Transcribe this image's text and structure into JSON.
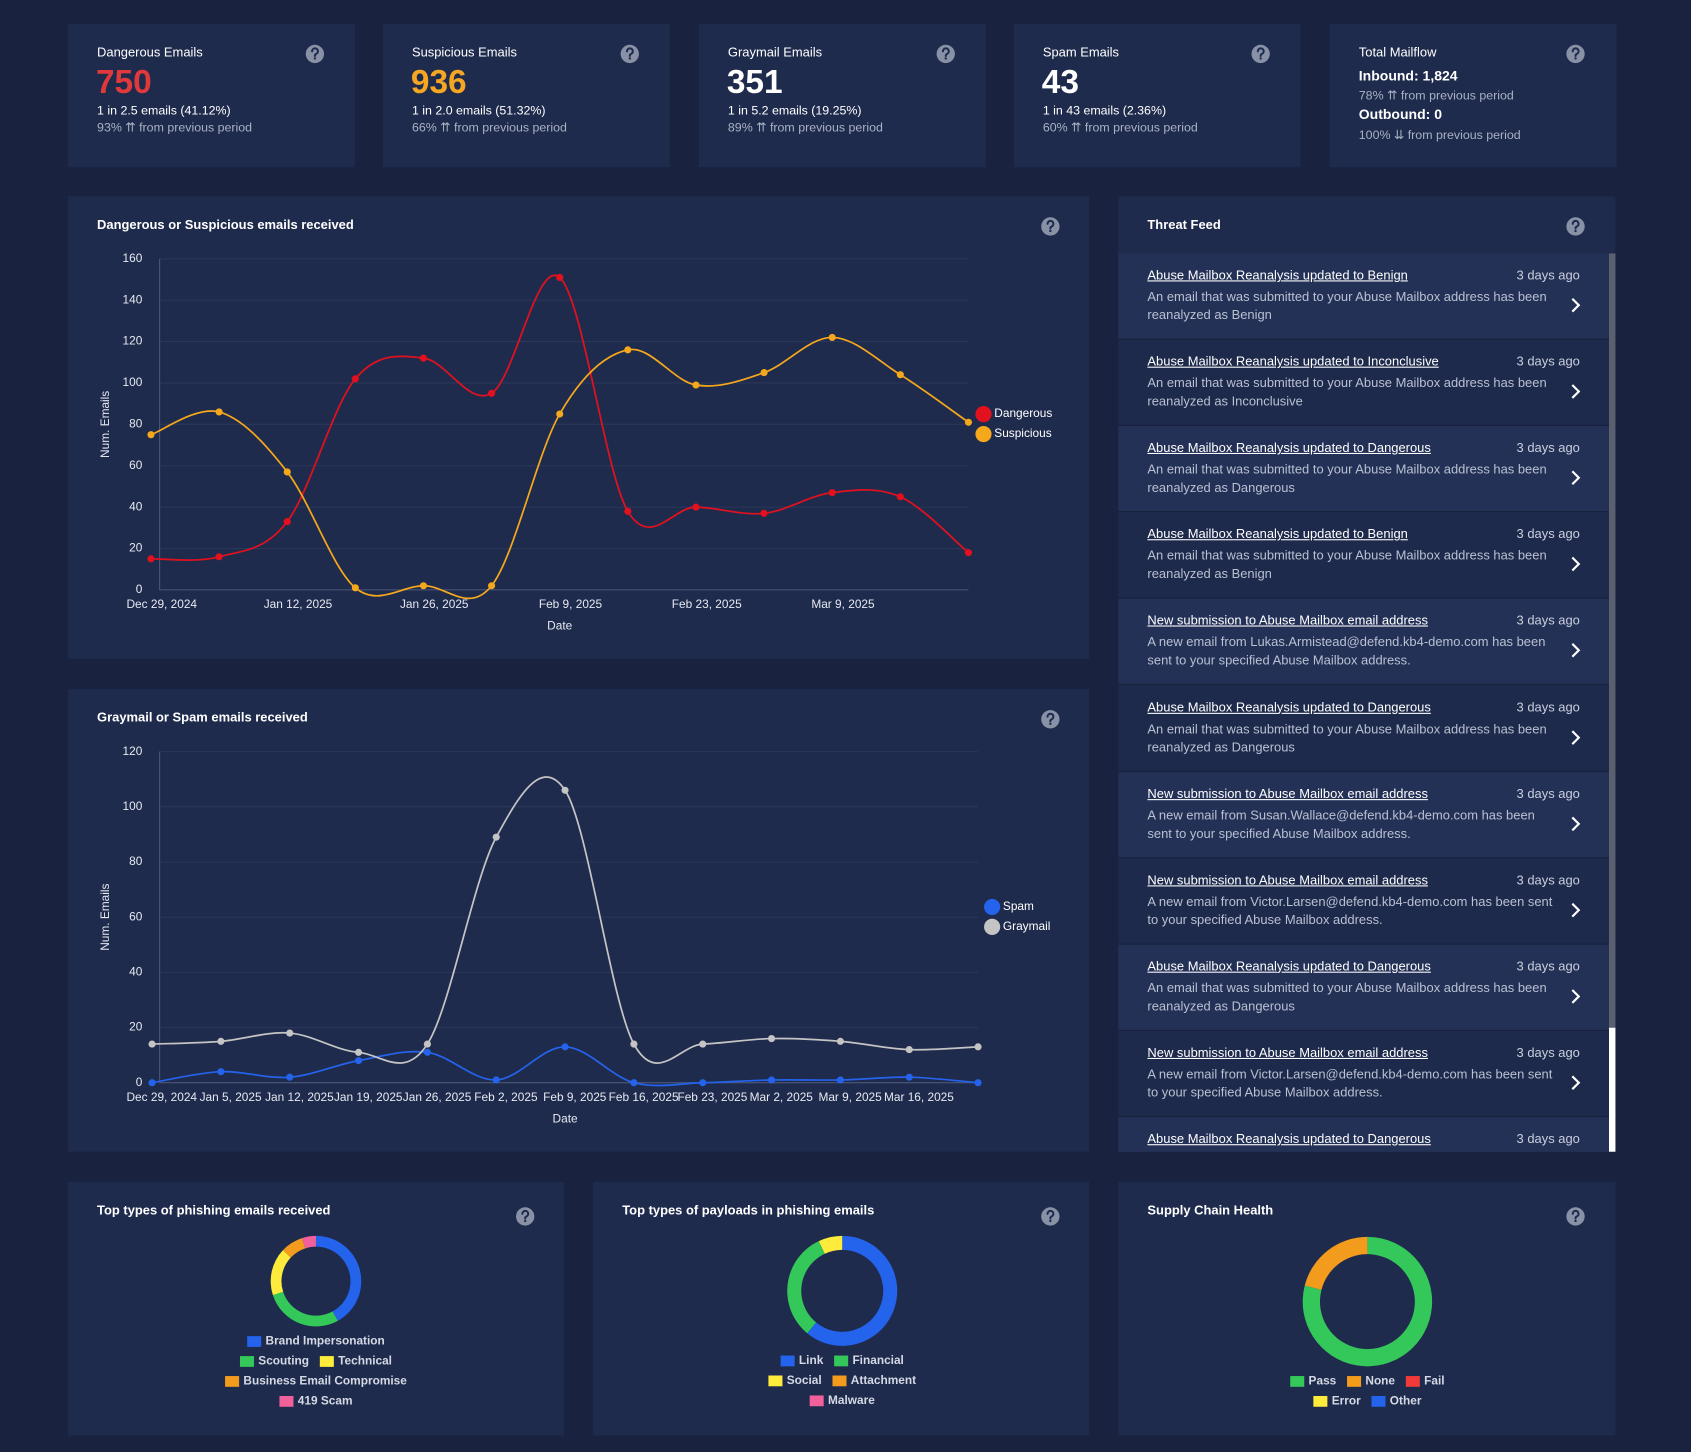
{
  "stats": [
    {
      "title": "Dangerous Emails",
      "value": 750,
      "color": "#e0393c",
      "ratio": "1 in 2.5 emails (41.12%)",
      "change": "93% ⇈ from previous period"
    },
    {
      "title": "Suspicious Emails",
      "value": 936,
      "color": "#f5a623",
      "ratio": "1 in 2.0 emails (51.32%)",
      "change": "66% ⇈ from previous period"
    },
    {
      "title": "Graymail Emails",
      "value": 351,
      "color": "#ffffff",
      "ratio": "1 in 5.2 emails (19.25%)",
      "change": "89% ⇈ from previous period"
    },
    {
      "title": "Spam Emails",
      "value": 43,
      "color": "#ffffff",
      "ratio": "1 in 43 emails (2.36%)",
      "change": "60% ⇈ from previous period"
    }
  ],
  "mailflow": {
    "title": "Total Mailflow",
    "inbound": "Inbound: 1,824",
    "inbound_change": "78% ⇈ from previous period",
    "outbound": "Outbound: 0",
    "outbound_change": "100% ⇊ from previous period"
  },
  "chart_data": [
    {
      "type": "line",
      "title": "Dangerous or Suspicious emails received",
      "x_label": "Date",
      "y_label": "Num. Emails",
      "categories": [
        "Dec 29, 2024",
        null,
        "Jan 12, 2025",
        null,
        "Jan 26, 2025",
        null,
        "Feb 9, 2025",
        null,
        "Feb 23, 2025",
        null,
        "Mar 9, 2025",
        null,
        null
      ],
      "series": [
        {
          "name": "Dangerous",
          "color": "#e3101e",
          "values": [
            15,
            16,
            33,
            102,
            112,
            95,
            151,
            38,
            40,
            37,
            47,
            45,
            18
          ]
        },
        {
          "name": "Suspicious",
          "color": "#f5a81c",
          "values": [
            75,
            86,
            57,
            1,
            2,
            2,
            85,
            116,
            99,
            105,
            122,
            104,
            81
          ]
        }
      ],
      "ylim": [
        0,
        160
      ],
      "yticks": [
        0,
        20,
        40,
        60,
        80,
        100,
        120,
        140,
        160
      ],
      "grid": true,
      "legend": "right"
    },
    {
      "type": "line",
      "title": "Graymail or Spam emails received",
      "x_label": "Date",
      "y_label": "Num. Emails",
      "categories": [
        "Dec 29, 2024",
        "Jan 5, 2025",
        "Jan 12, 2025",
        "Jan 19, 2025",
        "Jan 26, 2025",
        "Feb 2, 2025",
        "Feb 9, 2025",
        "Feb 16, 2025",
        "Feb 23, 2025",
        "Mar 2, 2025",
        "Mar 9, 2025",
        "Mar 16, 2025",
        null
      ],
      "series": [
        {
          "name": "Spam",
          "color": "#2463eb",
          "values": [
            0,
            4,
            2,
            8,
            11,
            1,
            13,
            0,
            0,
            1,
            1,
            2,
            0
          ]
        },
        {
          "name": "Graymail",
          "color": "#c4c4c4",
          "values": [
            14,
            15,
            18,
            11,
            14,
            89,
            106,
            14,
            14,
            16,
            15,
            12,
            13
          ]
        }
      ],
      "ylim": [
        0,
        120
      ],
      "yticks": [
        0,
        20,
        40,
        60,
        80,
        100,
        120
      ],
      "grid": true,
      "legend": "right"
    },
    {
      "type": "donut",
      "title": "Top types of phishing emails received",
      "categories": [
        "Brand Impersonation",
        "Scouting",
        "Technical",
        "Business Email Compromise",
        "419 Scam"
      ],
      "values": [
        42,
        28,
        17,
        8,
        5
      ],
      "colors": [
        "#2463eb",
        "#34c759",
        "#ffeb3b",
        "#f29b1d",
        "#f0609a"
      ],
      "legend": "bottom"
    },
    {
      "type": "donut",
      "title": "Top types of payloads in phishing emails",
      "categories": [
        "Link",
        "Financial",
        "Social",
        "Attachment",
        "Malware"
      ],
      "values": [
        61,
        32,
        7,
        0,
        0
      ],
      "colors": [
        "#2463eb",
        "#34c759",
        "#ffeb3b",
        "#f29b1d",
        "#f0609a"
      ],
      "legend": "bottom"
    },
    {
      "type": "donut",
      "title": "Supply Chain Health",
      "categories": [
        "Pass",
        "None",
        "Fail",
        "Error",
        "Other"
      ],
      "values": [
        79,
        21,
        0,
        0,
        0
      ],
      "colors": [
        "#34c759",
        "#f29b1d",
        "#f03a3a",
        "#ffeb3b",
        "#2463eb"
      ],
      "legend": "bottom"
    }
  ],
  "threat_feed": {
    "title": "Threat Feed",
    "items": [
      {
        "title": "Abuse Mailbox Reanalysis updated to Benign",
        "time": "3 days ago",
        "text": "An email that was submitted to your Abuse Mailbox address has been reanalyzed as Benign"
      },
      {
        "title": "Abuse Mailbox Reanalysis updated to Inconclusive",
        "time": "3 days ago",
        "text": "An email that was submitted to your Abuse Mailbox address has been reanalyzed as Inconclusive"
      },
      {
        "title": "Abuse Mailbox Reanalysis updated to Dangerous",
        "time": "3 days ago",
        "text": "An email that was submitted to your Abuse Mailbox address has been reanalyzed as Dangerous"
      },
      {
        "title": "Abuse Mailbox Reanalysis updated to Benign",
        "time": "3 days ago",
        "text": "An email that was submitted to your Abuse Mailbox address has been reanalyzed as Benign"
      },
      {
        "title": "New submission to Abuse Mailbox email address",
        "time": "3 days ago",
        "text": "A new email from Lukas.Armistead@defend.kb4-demo.com has been sent to your specified Abuse Mailbox address."
      },
      {
        "title": "Abuse Mailbox Reanalysis updated to Dangerous",
        "time": "3 days ago",
        "text": "An email that was submitted to your Abuse Mailbox address has been reanalyzed as Dangerous"
      },
      {
        "title": "New submission to Abuse Mailbox email address",
        "time": "3 days ago",
        "text": "A new email from Susan.Wallace@defend.kb4-demo.com has been sent to your specified Abuse Mailbox address."
      },
      {
        "title": "New submission to Abuse Mailbox email address",
        "time": "3 days ago",
        "text": "A new email from Victor.Larsen@defend.kb4-demo.com has been sent to your specified Abuse Mailbox address."
      },
      {
        "title": "Abuse Mailbox Reanalysis updated to Dangerous",
        "time": "3 days ago",
        "text": "An email that was submitted to your Abuse Mailbox address has been reanalyzed as Dangerous"
      },
      {
        "title": "New submission to Abuse Mailbox email address",
        "time": "3 days ago",
        "text": "A new email from Victor.Larsen@defend.kb4-demo.com has been sent to your specified Abuse Mailbox address."
      },
      {
        "title": "Abuse Mailbox Reanalysis updated to Dangerous",
        "time": "3 days ago"
      }
    ]
  }
}
